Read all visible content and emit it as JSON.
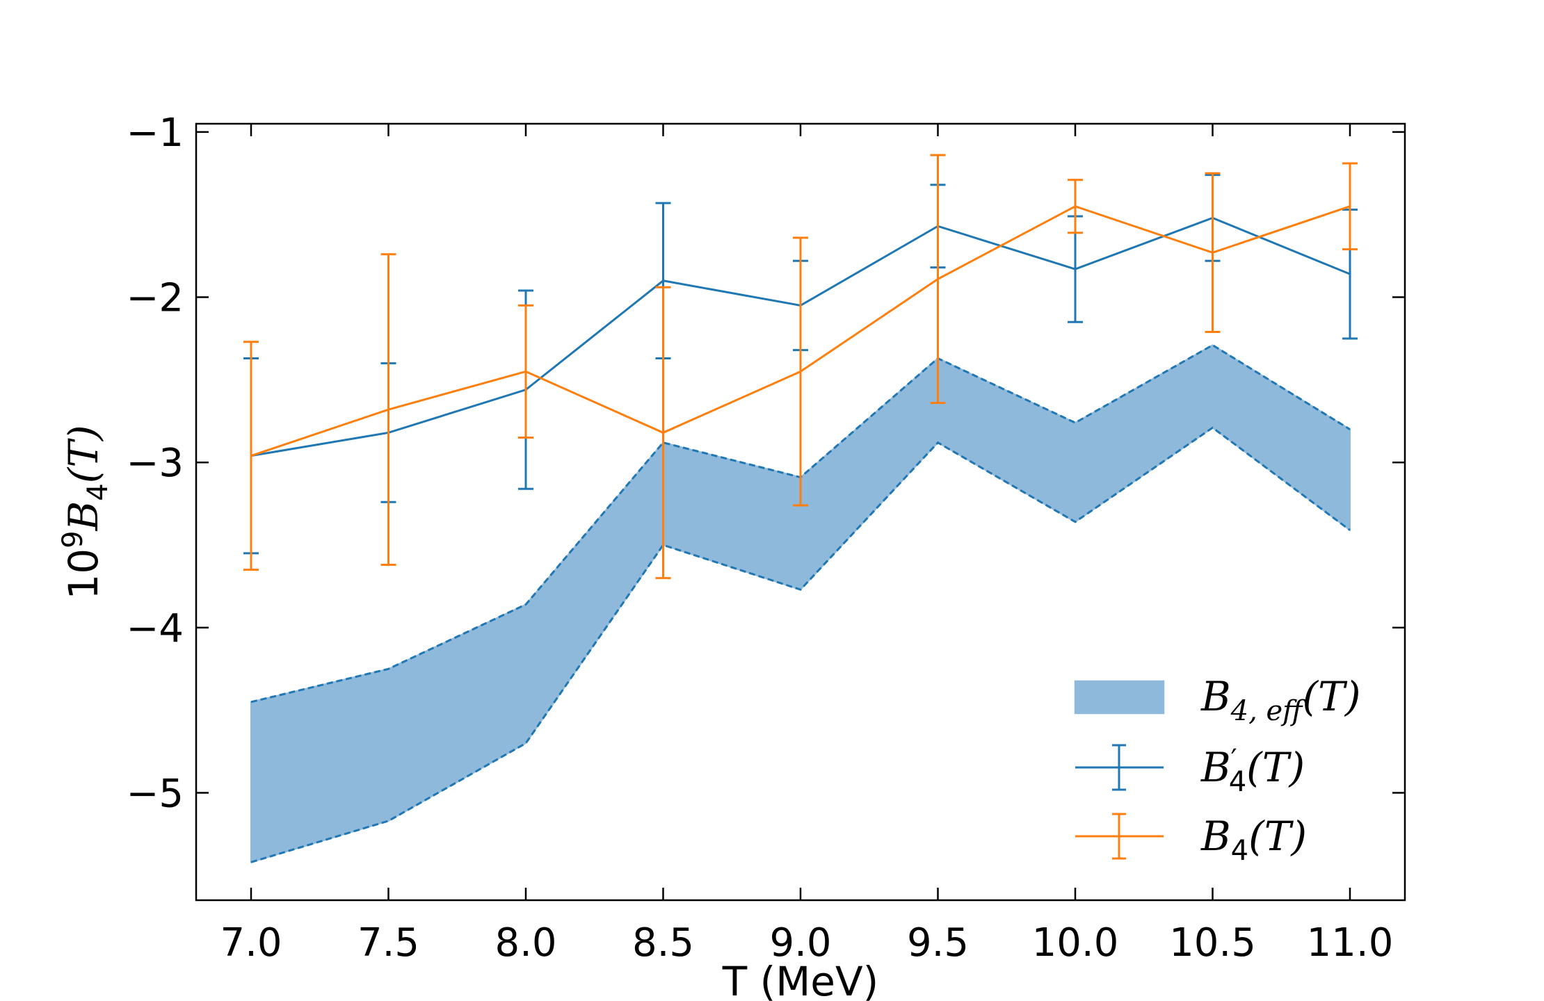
{
  "chart_data": {
    "type": "line",
    "title": "",
    "xlabel": "T (MeV)",
    "ylabel": {
      "prefix": "10",
      "exponent": "9",
      "symbol": "B",
      "subscript": "4",
      "arg": "(T)"
    },
    "xlim": [
      6.8,
      11.2
    ],
    "ylim": [
      -5.65,
      -0.95
    ],
    "x": [
      7.0,
      7.5,
      8.0,
      8.5,
      9.0,
      9.5,
      10.0,
      10.5,
      11.0
    ],
    "xticks": [
      7.0,
      7.5,
      8.0,
      8.5,
      9.0,
      9.5,
      10.0,
      10.5,
      11.0
    ],
    "xtick_labels": [
      "7.0",
      "7.5",
      "8.0",
      "8.5",
      "9.0",
      "9.5",
      "10.0",
      "10.5",
      "11.0"
    ],
    "yticks": [
      -1,
      -2,
      -3,
      -4,
      -5
    ],
    "ytick_labels": [
      "−1",
      "−2",
      "−3",
      "−4",
      "−5"
    ],
    "band": {
      "name": "B4,eff(T)",
      "upper": [
        -4.45,
        -4.25,
        -3.86,
        -2.88,
        -3.09,
        -2.37,
        -2.76,
        -2.29,
        -2.8
      ],
      "lower": [
        -5.42,
        -5.17,
        -4.7,
        -3.5,
        -3.77,
        -2.88,
        -3.36,
        -2.79,
        -3.41
      ],
      "color": "#8fb9da",
      "edge_color": "#1f77b4"
    },
    "series": [
      {
        "name": "B'4(T)",
        "values": [
          -2.96,
          -2.82,
          -2.56,
          -1.9,
          -2.05,
          -1.57,
          -1.83,
          -1.52,
          -1.86
        ],
        "errors": [
          0.59,
          0.42,
          0.6,
          0.47,
          0.27,
          0.25,
          0.32,
          0.26,
          0.39
        ],
        "color": "#1f77b4"
      },
      {
        "name": "B4(T)",
        "values": [
          -2.96,
          -2.68,
          -2.45,
          -2.82,
          -2.45,
          -1.89,
          -1.45,
          -1.73,
          -1.45
        ],
        "errors": [
          0.69,
          0.94,
          0.4,
          0.88,
          0.81,
          0.75,
          0.16,
          0.48,
          0.26
        ],
        "color": "#ff7f0e"
      }
    ],
    "legend": {
      "position": "lower-right",
      "entries": [
        {
          "symbol": "B",
          "subscript": "4, eff",
          "prime": "",
          "arg": "(T)"
        },
        {
          "symbol": "B",
          "subscript": "4",
          "prime": "′",
          "arg": "(T)"
        },
        {
          "symbol": "B",
          "subscript": "4",
          "prime": "",
          "arg": "(T)"
        }
      ]
    }
  }
}
